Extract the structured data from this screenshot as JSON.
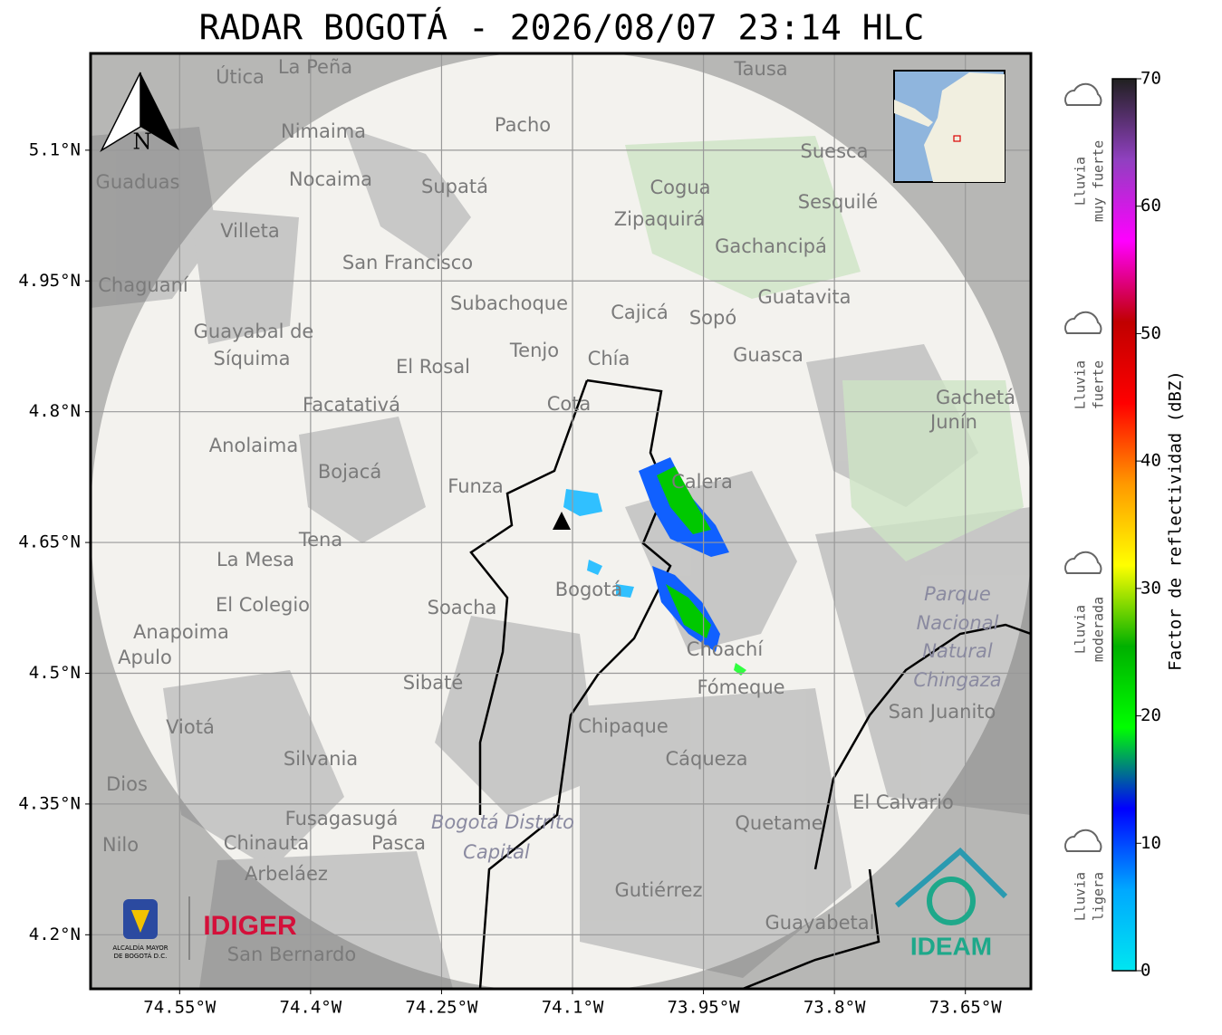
{
  "title": "RADAR BOGOTÁ - 2026/08/07 23:14 HLC",
  "map": {
    "xlim": [
      -74.652,
      -73.575
    ],
    "ylim": [
      4.138,
      5.211
    ],
    "grid": true,
    "xticks": [
      {
        "value": -74.55,
        "label": "74.55°W"
      },
      {
        "value": -74.4,
        "label": "74.4°W"
      },
      {
        "value": -74.25,
        "label": "74.25°W"
      },
      {
        "value": -74.1,
        "label": "74.1°W"
      },
      {
        "value": -73.95,
        "label": "73.95°W"
      },
      {
        "value": -73.8,
        "label": "73.8°W"
      },
      {
        "value": -73.65,
        "label": "73.65°W"
      }
    ],
    "yticks": [
      {
        "value": 5.1,
        "label": "5.1°N"
      },
      {
        "value": 4.95,
        "label": "4.95°N"
      },
      {
        "value": 4.8,
        "label": "4.8°N"
      },
      {
        "value": 4.65,
        "label": "4.65°N"
      },
      {
        "value": 4.5,
        "label": "4.5°N"
      },
      {
        "value": 4.35,
        "label": "4.35°N"
      },
      {
        "value": 4.2,
        "label": "4.2°N"
      }
    ],
    "places": [
      "La Peña",
      "Útica",
      "Tausa",
      "Pacho",
      "Nimaima",
      "Nocaima",
      "Supatá",
      "Guaduas",
      "Cogua",
      "Suesca",
      "Sesquilé",
      "Zipaquirá",
      "Villeta",
      "Gachancipá",
      "San Francisco",
      "Chaguaní",
      "Guatavita",
      "Subachoque",
      "Cajicá",
      "Sopó",
      "Guayabal de",
      "Síquima",
      "Tenjo",
      "Chía",
      "Guasca",
      "El Rosal",
      "Facatativá",
      "Cota",
      "Gachetá",
      "Junín",
      "Anolaima",
      "Bojacá",
      "Funza",
      "Calera",
      "Tena",
      "La Mesa",
      "Bogotá",
      "Soacha",
      "El Colegio",
      "Anapoima",
      "Apulo",
      "Parque",
      "Nacional",
      "Natural",
      "Chingaza",
      "Choachí",
      "Sibaté",
      "Fómeque",
      "San Juanito",
      "Chipaque",
      "Viotá",
      "Silvania",
      "Cáqueza",
      "El Calvario",
      "Fusagasugá",
      "Bogotá Distrito",
      "Capital",
      "Quetame",
      "Chinauta",
      "Pasca",
      "Nilo",
      "Dios",
      "Arbeláez",
      "Gutiérrez",
      "Guayabetal",
      "San Bernardo"
    ]
  },
  "north": "N",
  "logos": {
    "alcaldia": [
      "ALCALDÍA MAYOR",
      "DE BOGOTÁ D.C."
    ],
    "idiger": "IDIGER",
    "ideam": "IDEAM"
  },
  "colorbar": {
    "label": "Factor de reflectividad (dBZ)",
    "lim": [
      0,
      70
    ],
    "ticks": [
      0,
      10,
      20,
      30,
      40,
      50,
      60,
      70
    ],
    "colors": [
      "#00e6f0",
      "#00a8ff",
      "#0000ff",
      "#00ff00",
      "#00b000",
      "#ffff00",
      "#ff9900",
      "#ff0000",
      "#c00000",
      "#ff00ff",
      "#9040c0",
      "#202020"
    ]
  },
  "rain_levels": [
    [
      "Lluvia",
      "muy fuerte"
    ],
    [
      "Lluvia",
      "fuerte"
    ],
    [
      "Lluvia",
      "moderada"
    ],
    [
      "Lluvia",
      "ligera"
    ]
  ]
}
